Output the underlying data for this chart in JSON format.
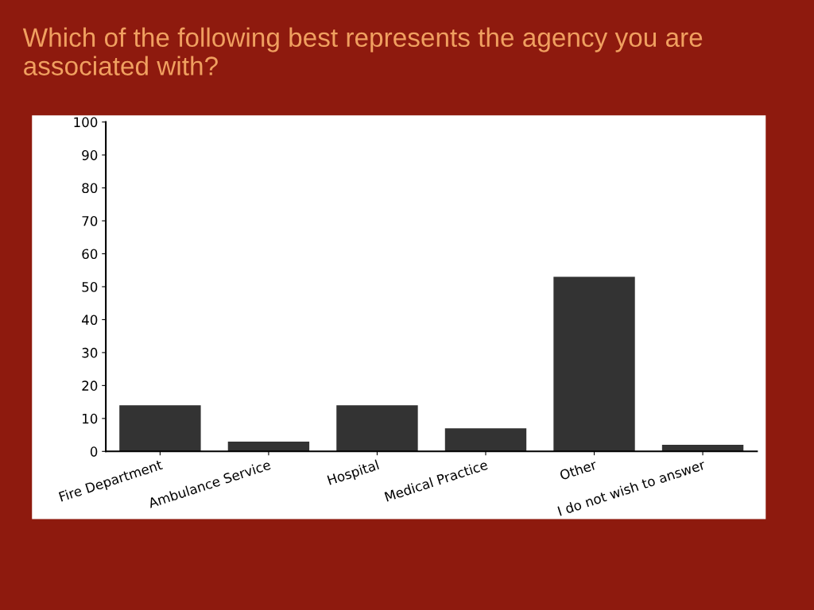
{
  "chart_data": {
    "type": "bar",
    "title": "Which of the following best represents the agency you are associated with?",
    "categories": [
      "Fire Department",
      "Ambulance Service",
      "Hospital",
      "Medical Practice",
      "Other",
      "I do not wish to answer"
    ],
    "values": [
      14,
      3,
      14,
      7,
      53,
      2
    ],
    "color": "#333333",
    "ylim": [
      0,
      100
    ],
    "yticks": [
      0,
      10,
      20,
      30,
      40,
      50,
      60,
      70,
      80,
      90,
      100
    ],
    "grid": false
  }
}
